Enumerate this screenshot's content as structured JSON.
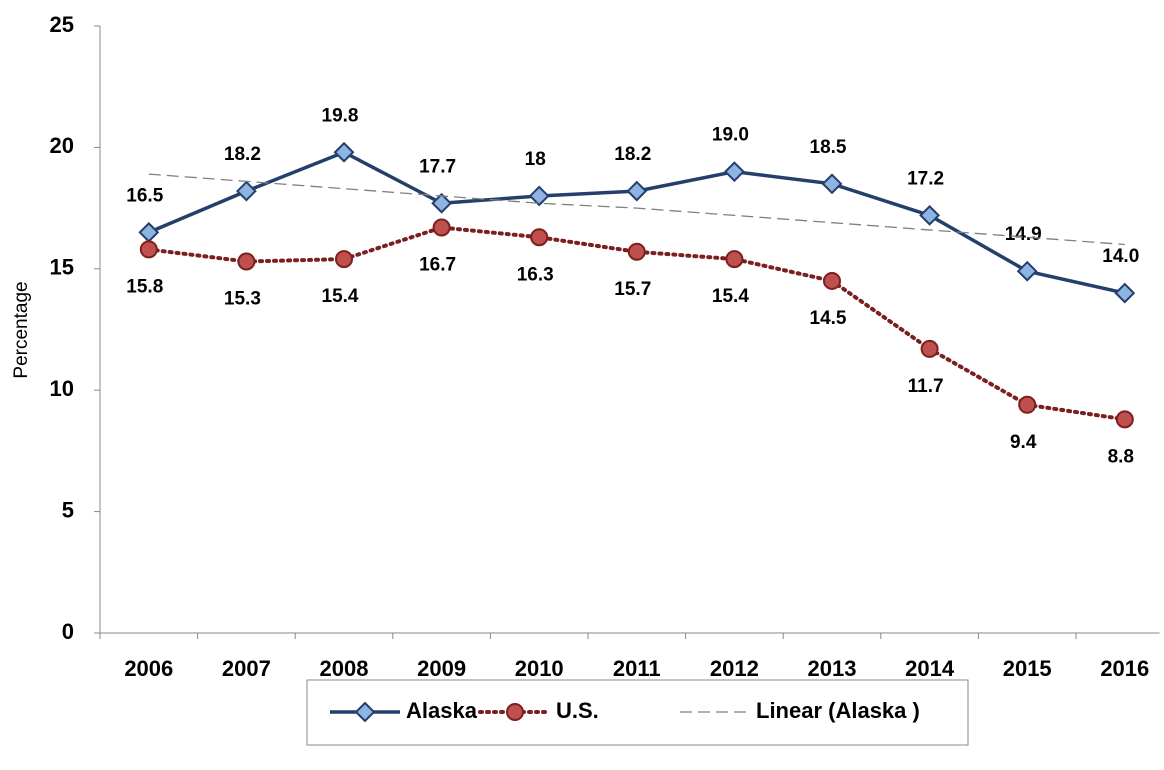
{
  "chart_data": {
    "type": "line",
    "y_label": "Percentage",
    "categories": [
      "2006",
      "2007",
      "2008",
      "2009",
      "2010",
      "2011",
      "2012",
      "2013",
      "2014",
      "2015",
      "2016"
    ],
    "series": [
      {
        "name": "Alaska",
        "color": "#243f6b",
        "marker": "diamond",
        "marker_fill": "#8eb4e3",
        "dash": "solid",
        "label_side": "above",
        "values": [
          16.5,
          18.2,
          19.8,
          17.7,
          18,
          18.2,
          19.0,
          18.5,
          17.2,
          14.9,
          14.0
        ],
        "value_labels": [
          "16.5",
          "18.2",
          "19.8",
          "17.7",
          "18",
          "18.2",
          "19.0",
          "18.5",
          "17.2",
          "14.9",
          "14.0"
        ]
      },
      {
        "name": "U.S.",
        "color": "#7b2020",
        "marker": "circle",
        "marker_fill": "#c0504d",
        "dash": "dotted",
        "label_side": "below",
        "values": [
          15.8,
          15.3,
          15.4,
          16.7,
          16.3,
          15.7,
          15.4,
          14.5,
          11.7,
          9.4,
          8.8
        ],
        "value_labels": [
          "15.8",
          "15.3",
          "15.4",
          "16.7",
          "16.3",
          "15.7",
          "15.4",
          "14.5",
          "11.7",
          "9.4",
          "8.8"
        ]
      },
      {
        "name": "Linear (Alaska )",
        "color": "#808080",
        "marker": "none",
        "dash": "dashed",
        "values": [
          18.9,
          18.6,
          18.3,
          18.0,
          17.7,
          17.5,
          17.2,
          16.9,
          16.6,
          16.3,
          16.0
        ]
      }
    ],
    "ylim": [
      0,
      25
    ],
    "yticks": [
      0,
      5,
      10,
      15,
      20,
      25
    ],
    "grid": false
  }
}
